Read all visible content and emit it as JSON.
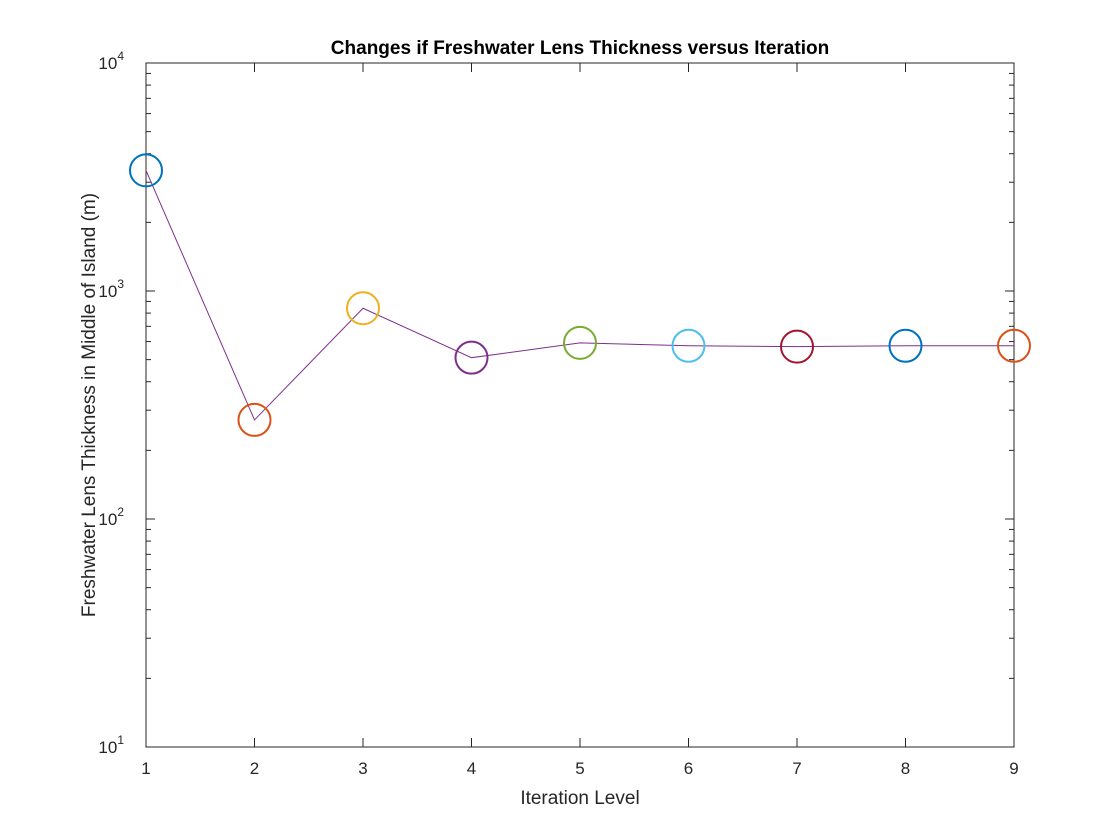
{
  "chart_data": {
    "type": "line",
    "title": "Changes if Freshwater Lens Thickness versus Iteration",
    "xlabel": "Iteration Level",
    "ylabel": "Freshwater Lens Thickness in Middle of Island (m)",
    "x": [
      1,
      2,
      3,
      4,
      5,
      6,
      7,
      8,
      9
    ],
    "y": [
      3380,
      272,
      840,
      510,
      592,
      575,
      570,
      575,
      575
    ],
    "xlim": [
      1,
      9
    ],
    "ylim": [
      10,
      10000
    ],
    "yscale": "log",
    "xticks": [
      "1",
      "2",
      "3",
      "4",
      "5",
      "6",
      "7",
      "8",
      "9"
    ],
    "yticks": [
      {
        "base": "10",
        "exp": "1"
      },
      {
        "base": "10",
        "exp": "2"
      },
      {
        "base": "10",
        "exp": "3"
      },
      {
        "base": "10",
        "exp": "4"
      }
    ],
    "ytick_values": [
      10,
      100,
      1000,
      10000
    ],
    "grid": false,
    "line_color": "#7E2F8E",
    "marker": "circle",
    "marker_colors": [
      "#0072BD",
      "#D95319",
      "#EDB120",
      "#7E2F8E",
      "#77AC30",
      "#4DBEEE",
      "#A2142F",
      "#0072BD",
      "#D95319"
    ],
    "axis_color": "#262626"
  }
}
